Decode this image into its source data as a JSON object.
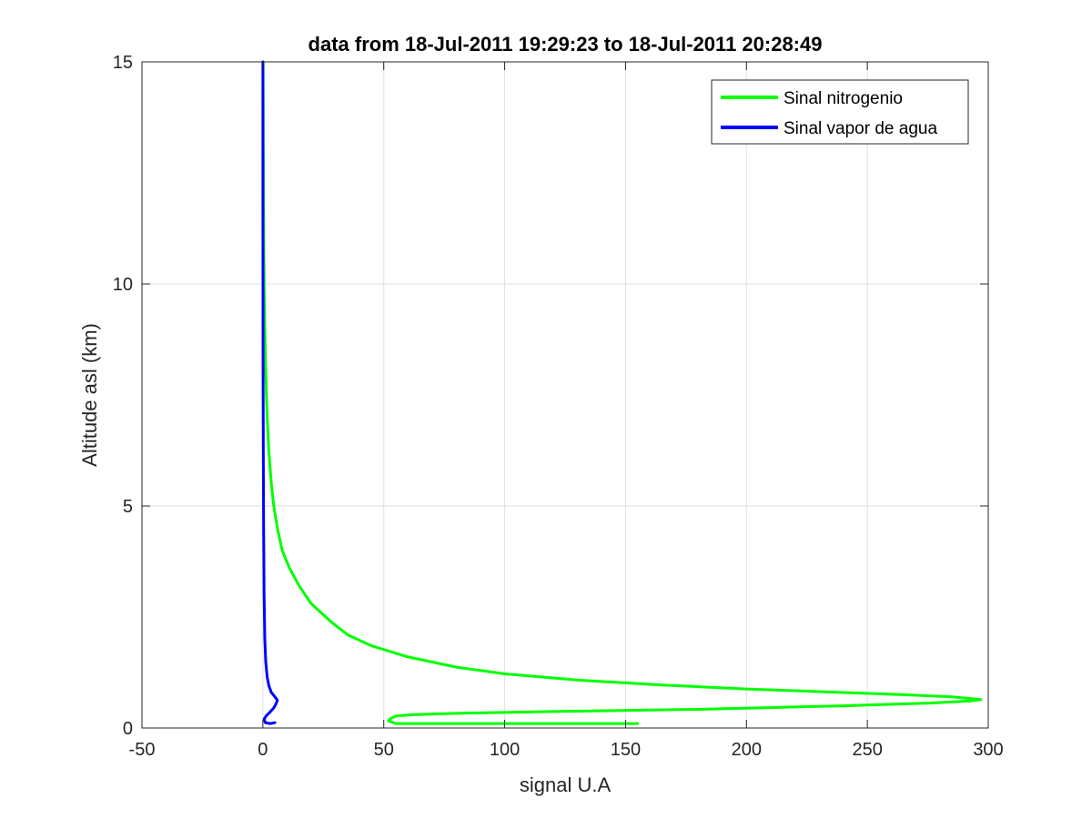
{
  "chart_data": {
    "type": "line",
    "title": "data from 18-Jul-2011 19:29:23 to 18-Jul-2011 20:28:49",
    "xlabel": "signal U.A",
    "ylabel": "Altitude asl (km)",
    "xlim": [
      -50,
      300
    ],
    "ylim": [
      0,
      15
    ],
    "xticks": [
      -50,
      0,
      50,
      100,
      150,
      200,
      250,
      300
    ],
    "xtick_labels": [
      "-50",
      "0",
      "50",
      "100",
      "150",
      "200",
      "250",
      "300"
    ],
    "yticks": [
      0,
      5,
      10,
      15
    ],
    "ytick_labels": [
      "0",
      "5",
      "10",
      "15"
    ],
    "grid": true,
    "legend_position": "top-right",
    "series": [
      {
        "name": "Sinal nitrogenio",
        "color": "#00ff00",
        "points": [
          [
            155,
            0.1
          ],
          [
            55,
            0.1
          ],
          [
            52,
            0.16
          ],
          [
            53,
            0.22
          ],
          [
            55,
            0.27
          ],
          [
            62,
            0.3
          ],
          [
            80,
            0.33
          ],
          [
            120,
            0.37
          ],
          [
            180,
            0.42
          ],
          [
            240,
            0.5
          ],
          [
            275,
            0.56
          ],
          [
            293,
            0.61
          ],
          [
            297,
            0.64
          ],
          [
            285,
            0.7
          ],
          [
            265,
            0.75
          ],
          [
            240,
            0.8
          ],
          [
            200,
            0.88
          ],
          [
            165,
            0.97
          ],
          [
            130,
            1.08
          ],
          [
            100,
            1.22
          ],
          [
            80,
            1.37
          ],
          [
            60,
            1.6
          ],
          [
            45,
            1.85
          ],
          [
            35,
            2.1
          ],
          [
            28,
            2.4
          ],
          [
            20,
            2.8
          ],
          [
            15,
            3.2
          ],
          [
            11,
            3.6
          ],
          [
            8,
            4.0
          ],
          [
            6,
            4.5
          ],
          [
            4.5,
            5.0
          ],
          [
            3.5,
            5.5
          ],
          [
            2.5,
            6.2
          ],
          [
            1.8,
            7.0
          ],
          [
            1.2,
            8.0
          ],
          [
            0.8,
            9.0
          ],
          [
            0.5,
            10.0
          ],
          [
            0.3,
            11.5
          ],
          [
            0.2,
            13.0
          ],
          [
            0.1,
            15.0
          ]
        ]
      },
      {
        "name": "Sinal vapor de agua",
        "color": "#0000ff",
        "points": [
          [
            5,
            0.12
          ],
          [
            3,
            0.1
          ],
          [
            1,
            0.12
          ],
          [
            0.5,
            0.2
          ],
          [
            1.5,
            0.28
          ],
          [
            3,
            0.36
          ],
          [
            4.5,
            0.45
          ],
          [
            5.5,
            0.55
          ],
          [
            6,
            0.63
          ],
          [
            5,
            0.7
          ],
          [
            3.5,
            0.8
          ],
          [
            2.5,
            0.95
          ],
          [
            1.8,
            1.15
          ],
          [
            1.2,
            1.5
          ],
          [
            0.8,
            2.0
          ],
          [
            0.5,
            3.0
          ],
          [
            0.3,
            4.5
          ],
          [
            0.2,
            6.0
          ],
          [
            0.1,
            8.0
          ],
          [
            0.05,
            10.0
          ],
          [
            0.0,
            12.0
          ],
          [
            0.0,
            15.0
          ]
        ]
      }
    ]
  }
}
